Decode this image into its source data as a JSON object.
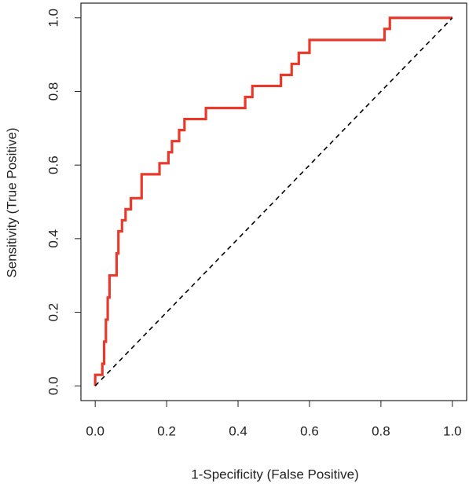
{
  "chart_data": {
    "type": "line",
    "xlabel": "1-Specificity (False Positive)",
    "ylabel": "Sensitivity (True Positive)",
    "xlim": [
      -0.04,
      1.04
    ],
    "ylim": [
      -0.04,
      1.04
    ],
    "xticks": [
      {
        "value": 0,
        "label": "0.0"
      },
      0.2,
      0.4,
      0.6,
      0.8,
      {
        "value": 1,
        "label": "1.0"
      }
    ],
    "yticks": [
      {
        "value": 0,
        "label": "0.0"
      },
      0.2,
      0.4,
      0.6,
      0.8,
      {
        "value": 1,
        "label": "1.0"
      }
    ],
    "series": [
      {
        "color": "#e8392b",
        "x": [
          0,
          0,
          0.02,
          0.02,
          0.025,
          0.025,
          0.03,
          0.03,
          0.035,
          0.035,
          0.04,
          0.04,
          0.06,
          0.06,
          0.065,
          0.065,
          0.075,
          0.075,
          0.085,
          0.085,
          0.1,
          0.1,
          0.13,
          0.13,
          0.18,
          0.18,
          0.205,
          0.205,
          0.215,
          0.215,
          0.235,
          0.235,
          0.25,
          0.25,
          0.31,
          0.31,
          0.42,
          0.42,
          0.44,
          0.44,
          0.52,
          0.52,
          0.55,
          0.55,
          0.57,
          0.57,
          0.6,
          0.6,
          0.81,
          0.81,
          0.825,
          0.825,
          1
        ],
        "values": [
          0,
          0.03,
          0.03,
          0.06,
          0.06,
          0.12,
          0.12,
          0.18,
          0.18,
          0.24,
          0.24,
          0.3,
          0.3,
          0.36,
          0.36,
          0.42,
          0.42,
          0.45,
          0.45,
          0.48,
          0.48,
          0.51,
          0.51,
          0.575,
          0.575,
          0.605,
          0.605,
          0.635,
          0.635,
          0.665,
          0.665,
          0.695,
          0.695,
          0.725,
          0.725,
          0.755,
          0.755,
          0.785,
          0.785,
          0.815,
          0.815,
          0.845,
          0.845,
          0.875,
          0.875,
          0.905,
          0.905,
          0.94,
          0.94,
          0.97,
          0.97,
          1,
          1
        ]
      },
      {
        "color": "#000000",
        "dashed": true,
        "x": [
          0,
          1
        ],
        "values": [
          0,
          1
        ]
      }
    ]
  }
}
